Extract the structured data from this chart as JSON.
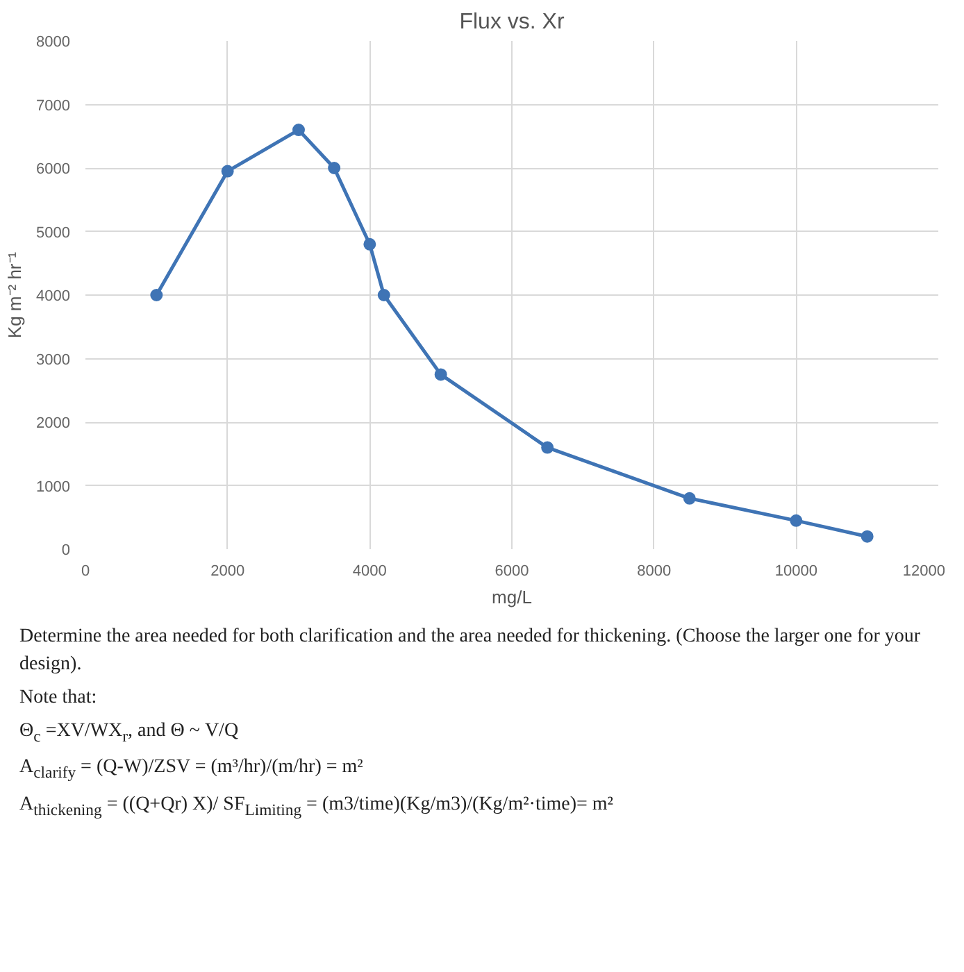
{
  "chart_data": {
    "type": "line",
    "title": "Flux vs. Xr",
    "xlabel": "mg/L",
    "ylabel": "Kg m⁻² hr⁻¹",
    "x": [
      1000,
      2000,
      3000,
      3500,
      4000,
      4200,
      5000,
      6500,
      8500,
      10000,
      11000
    ],
    "series": [
      {
        "color": "#3f74b5",
        "values": [
          4000,
          5950,
          6600,
          6000,
          4800,
          4000,
          2750,
          1600,
          800,
          450,
          200
        ]
      }
    ],
    "xlim": [
      0,
      12000
    ],
    "xticks": [
      0,
      2000,
      4000,
      6000,
      8000,
      10000,
      12000
    ],
    "ylim": [
      0,
      8000
    ],
    "yticks": [
      0,
      1000,
      2000,
      3000,
      4000,
      5000,
      6000,
      7000,
      8000
    ],
    "grid": true,
    "marker": "circle",
    "line_style": "solid",
    "annotations": [
      "Determine the area needed for both clarification and the area needed for thickening. (Choose the larger one for your design).",
      "Note that:",
      "Θ$_{c}$ =XV/WX$_{r}$, and Θ ~ V/Q",
      "A$_{clarify}$ = (Q-W)/ZSV = (m³/hr)/(m/hr) = m²",
      "A$_{thickening}$ = ((Q+Qr) X)/ SF$_{Limiting}$ =  (m3/time)(Kg/m3)/(Kg/m²·time)= m²"
    ]
  }
}
